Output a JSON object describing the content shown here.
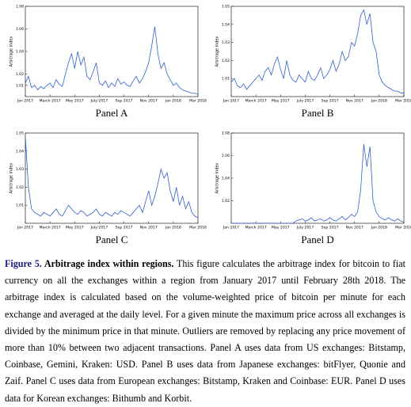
{
  "chart_data": [
    {
      "type": "line",
      "title": "Panel A",
      "ylabel": "Arbitrage Index",
      "color": "#2f5fd0",
      "categories": [
        "Jan 2017",
        null,
        null,
        null,
        null,
        null,
        null,
        null,
        "March 2017",
        null,
        null,
        null,
        null,
        null,
        null,
        null,
        "May 2017",
        null,
        null,
        null,
        null,
        null,
        null,
        null,
        "July 2017",
        null,
        null,
        null,
        null,
        null,
        null,
        null,
        "Sep 2017",
        null,
        null,
        null,
        null,
        null,
        null,
        null,
        "Nov 2017",
        null,
        null,
        null,
        null,
        null,
        null,
        null,
        "Jan 2018",
        null,
        null,
        null,
        null,
        null,
        null,
        null,
        "Mar 2018"
      ],
      "values": [
        1.012,
        1.018,
        1.008,
        1.01,
        1.006,
        1.009,
        1.007,
        1.01,
        1.012,
        1.008,
        1.015,
        1.011,
        1.009,
        1.02,
        1.03,
        1.038,
        1.025,
        1.04,
        1.028,
        1.035,
        1.018,
        1.015,
        1.022,
        1.03,
        1.012,
        1.01,
        1.014,
        1.008,
        1.012,
        1.009,
        1.016,
        1.011,
        1.013,
        1.01,
        1.009,
        1.014,
        1.018,
        1.012,
        1.016,
        1.022,
        1.03,
        1.045,
        1.062,
        1.038,
        1.025,
        1.03,
        1.02,
        1.015,
        1.01,
        1.012,
        1.008,
        1.006,
        1.005,
        1.004,
        1.003,
        1.003,
        1.002
      ],
      "ylim": [
        1,
        1.08
      ],
      "yticks": [
        1.01,
        1.02,
        1.04,
        1.06,
        1.08
      ]
    },
    {
      "type": "line",
      "title": "Panel B",
      "ylabel": "Arbitrage Index",
      "color": "#2f5fd0",
      "categories": [
        "Jan 2017",
        null,
        null,
        null,
        null,
        null,
        null,
        null,
        "March 2017",
        null,
        null,
        null,
        null,
        null,
        null,
        null,
        "May 2017",
        null,
        null,
        null,
        null,
        null,
        null,
        null,
        "July 2017",
        null,
        null,
        null,
        null,
        null,
        null,
        null,
        "Sep 2017",
        null,
        null,
        null,
        null,
        null,
        null,
        null,
        "Nov 2017",
        null,
        null,
        null,
        null,
        null,
        null,
        null,
        "Jan 2018",
        null,
        null,
        null,
        null,
        null,
        null,
        null,
        "Mar 2018"
      ],
      "values": [
        1.008,
        1.01,
        1.006,
        1.005,
        1.007,
        1.004,
        1.006,
        1.008,
        1.01,
        1.012,
        1.009,
        1.014,
        1.016,
        1.012,
        1.018,
        1.022,
        1.015,
        1.01,
        1.02,
        1.012,
        1.009,
        1.008,
        1.012,
        1.01,
        1.008,
        1.014,
        1.01,
        1.009,
        1.012,
        1.016,
        1.01,
        1.012,
        1.015,
        1.02,
        1.014,
        1.018,
        1.025,
        1.02,
        1.022,
        1.03,
        1.028,
        1.035,
        1.045,
        1.048,
        1.04,
        1.046,
        1.03,
        1.025,
        1.012,
        1.008,
        1.006,
        1.005,
        1.004,
        1.003,
        1.003,
        1.002,
        1.002
      ],
      "ylim": [
        1,
        1.05
      ],
      "yticks": [
        1.01,
        1.02,
        1.03,
        1.04,
        1.05
      ]
    },
    {
      "type": "line",
      "title": "Panel C",
      "ylabel": "Arbitrage Index",
      "color": "#2f5fd0",
      "categories": [
        "Jan 2017",
        null,
        null,
        null,
        null,
        null,
        null,
        null,
        "March 2017",
        null,
        null,
        null,
        null,
        null,
        null,
        null,
        "May 2017",
        null,
        null,
        null,
        null,
        null,
        null,
        null,
        "July 2017",
        null,
        null,
        null,
        null,
        null,
        null,
        null,
        "Sep 2017",
        null,
        null,
        null,
        null,
        null,
        null,
        null,
        "Nov 2017",
        null,
        null,
        null,
        null,
        null,
        null,
        null,
        "Jan 2018",
        null,
        null,
        null,
        null,
        null,
        null,
        null,
        "Mar 2018"
      ],
      "values": [
        1.048,
        1.02,
        1.008,
        1.006,
        1.005,
        1.004,
        1.006,
        1.005,
        1.004,
        1.006,
        1.008,
        1.005,
        1.004,
        1.007,
        1.01,
        1.008,
        1.006,
        1.005,
        1.007,
        1.006,
        1.004,
        1.005,
        1.006,
        1.008,
        1.005,
        1.004,
        1.006,
        1.005,
        1.004,
        1.006,
        1.005,
        1.007,
        1.006,
        1.005,
        1.004,
        1.006,
        1.008,
        1.01,
        1.006,
        1.012,
        1.018,
        1.01,
        1.015,
        1.022,
        1.03,
        1.025,
        1.028,
        1.018,
        1.012,
        1.02,
        1.01,
        1.015,
        1.008,
        1.012,
        1.006,
        1.004,
        1.003
      ],
      "ylim": [
        1,
        1.05
      ],
      "yticks": [
        1.01,
        1.02,
        1.03,
        1.04,
        1.05
      ]
    },
    {
      "type": "line",
      "title": "Panel D",
      "ylabel": "Arbitrage Index",
      "color": "#2f5fd0",
      "categories": [
        "Jan 2017",
        null,
        null,
        null,
        null,
        null,
        null,
        null,
        "March 2017",
        null,
        null,
        null,
        null,
        null,
        null,
        null,
        "May 2017",
        null,
        null,
        null,
        null,
        null,
        null,
        null,
        "July 2017",
        null,
        null,
        null,
        null,
        null,
        null,
        null,
        "Sep 2017",
        null,
        null,
        null,
        null,
        null,
        null,
        null,
        "Nov 2017",
        null,
        null,
        null,
        null,
        null,
        null,
        null,
        "Jan 2018",
        null,
        null,
        null,
        null,
        null,
        null,
        null,
        "Mar 2018"
      ],
      "values": [
        1.0,
        1.0,
        1.0,
        1.0,
        1.0,
        1.0,
        1.0,
        1.0,
        1.0,
        1.0,
        1.0,
        1.0,
        1.0,
        1.0,
        1.0,
        1.0,
        1.0,
        1.0,
        1.0,
        1.0,
        1.0,
        1.002,
        1.003,
        1.004,
        1.002,
        1.003,
        1.005,
        1.002,
        1.003,
        1.004,
        1.002,
        1.003,
        1.005,
        1.003,
        1.002,
        1.004,
        1.006,
        1.003,
        1.005,
        1.008,
        1.006,
        1.01,
        1.03,
        1.07,
        1.05,
        1.068,
        1.02,
        1.01,
        1.006,
        1.004,
        1.003,
        1.005,
        1.003,
        1.002,
        1.004,
        1.002,
        1.001
      ],
      "ylim": [
        1,
        1.08
      ],
      "yticks": [
        1.02,
        1.04,
        1.06,
        1.08
      ]
    }
  ],
  "caption": {
    "label": "Figure 5.",
    "title": "Arbitrage index within regions.",
    "text": "This figure calculates the arbitrage index for bitcoin to fiat currency on all the exchanges within a region from January 2017 until February 28th 2018. The arbitrage index is calculated based on the volume-weighted price of bitcoin per minute for each exchange and averaged at the daily level. For a given minute the maximum price across all exchanges is divided by the minimum price in that minute. Outliers are removed by replacing any price movement of more than 10% between two adjacent transactions. Panel A uses data from US exchanges: Bitstamp, Coinbase, Gemini, Kraken: USD. Panel B uses data from Japanese exchanges: bitFlyer, Quonie and Zaif. Panel C uses data from European exchanges: Bitstamp, Kraken and Coinbase: EUR. Panel D uses data for Korean exchanges: Bithumb and Korbit."
  }
}
